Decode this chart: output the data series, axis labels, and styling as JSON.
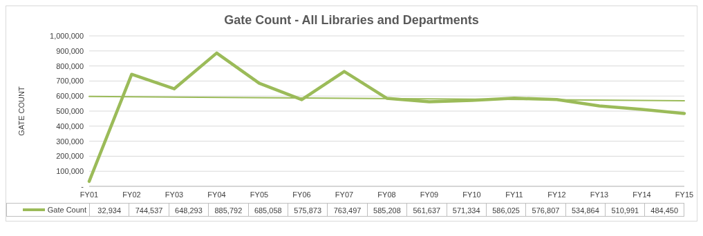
{
  "chart_data": {
    "type": "line",
    "title": "Gate Count - All Libraries and Departments",
    "ylabel": "GATE COUNT",
    "categories": [
      "FY01",
      "FY02",
      "FY03",
      "FY04",
      "FY05",
      "FY06",
      "FY07",
      "FY08",
      "FY09",
      "FY10",
      "FY11",
      "FY12",
      "FY13",
      "FY14",
      "FY15"
    ],
    "series": [
      {
        "name": "Gate Count",
        "color": "#9bbb59",
        "values": [
          32934,
          744537,
          648293,
          885792,
          685058,
          575873,
          763497,
          585208,
          561637,
          571334,
          586025,
          576807,
          534864,
          510991,
          484450
        ],
        "value_labels": [
          "32,934",
          "744,537",
          "648,293",
          "885,792",
          "685,058",
          "575,873",
          "763,497",
          "585,208",
          "561,637",
          "571,334",
          "586,025",
          "576,807",
          "534,864",
          "510,991",
          "484,450"
        ]
      },
      {
        "type": "line",
        "color": "#9bbb59",
        "x": [
          "FY01",
          "FY15"
        ],
        "values": [
          597000,
          569000
        ]
      }
    ],
    "ylim": [
      0,
      1000000
    ],
    "yticks": [
      {
        "value": 0,
        "label": "-"
      },
      {
        "value": 100000,
        "label": "100,000"
      },
      {
        "value": 200000,
        "label": "200,000"
      },
      {
        "value": 300000,
        "label": "300,000"
      },
      {
        "value": 400000,
        "label": "400,000"
      },
      {
        "value": 500000,
        "label": "500,000"
      },
      {
        "value": 600000,
        "label": "600,000"
      },
      {
        "value": 700000,
        "label": "700,000"
      },
      {
        "value": 800000,
        "label": "800,000"
      },
      {
        "value": 900000,
        "label": "900,000"
      },
      {
        "value": 1000000,
        "label": "1,000,000"
      }
    ],
    "grid": "y",
    "legend": "bottom",
    "marker": "none",
    "line_style": "solid"
  }
}
